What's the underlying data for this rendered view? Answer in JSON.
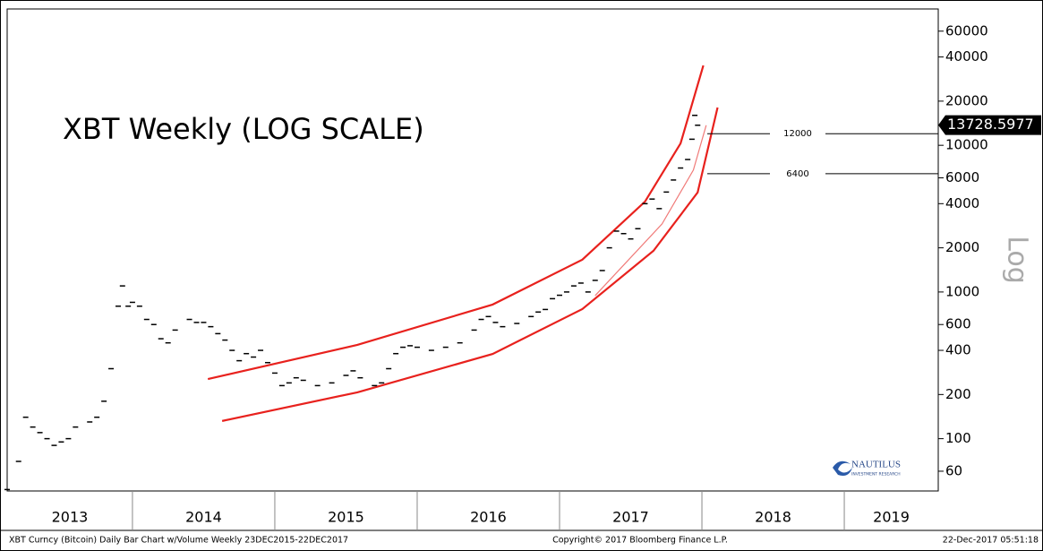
{
  "chart_data": {
    "type": "bar",
    "title": "XBT Weekly (LOG SCALE)",
    "y_axis_label": "Log",
    "log_scale": true,
    "color": "#000000",
    "x": [
      2013.12,
      2013.2,
      2013.25,
      2013.3,
      2013.35,
      2013.4,
      2013.45,
      2013.5,
      2013.55,
      2013.6,
      2013.7,
      2013.75,
      2013.8,
      2013.85,
      2013.9,
      2013.93,
      2013.97,
      2014.0,
      2014.05,
      2014.1,
      2014.15,
      2014.2,
      2014.25,
      2014.3,
      2014.4,
      2014.45,
      2014.5,
      2014.55,
      2014.6,
      2014.65,
      2014.7,
      2014.75,
      2014.8,
      2014.85,
      2014.9,
      2014.95,
      2015.0,
      2015.05,
      2015.1,
      2015.15,
      2015.2,
      2015.3,
      2015.4,
      2015.5,
      2015.55,
      2015.6,
      2015.7,
      2015.75,
      2015.8,
      2015.85,
      2015.9,
      2015.95,
      2016.0,
      2016.1,
      2016.2,
      2016.3,
      2016.4,
      2016.45,
      2016.5,
      2016.55,
      2016.6,
      2016.7,
      2016.8,
      2016.85,
      2016.9,
      2016.95,
      2017.0,
      2017.05,
      2017.1,
      2017.15,
      2017.2,
      2017.25,
      2017.3,
      2017.35,
      2017.4,
      2017.45,
      2017.5,
      2017.55,
      2017.6,
      2017.65,
      2017.7,
      2017.75,
      2017.8,
      2017.85,
      2017.9,
      2017.93,
      2017.95,
      2017.97
    ],
    "values": [
      45,
      70,
      140,
      120,
      110,
      100,
      90,
      95,
      100,
      120,
      130,
      140,
      180,
      300,
      800,
      1100,
      800,
      850,
      800,
      650,
      600,
      480,
      450,
      550,
      650,
      620,
      620,
      580,
      520,
      470,
      400,
      340,
      380,
      360,
      400,
      330,
      280,
      230,
      240,
      260,
      250,
      230,
      240,
      270,
      290,
      260,
      230,
      240,
      300,
      380,
      420,
      430,
      420,
      400,
      420,
      450,
      550,
      650,
      680,
      620,
      580,
      610,
      680,
      730,
      760,
      900,
      950,
      1000,
      1100,
      1150,
      1000,
      1200,
      1400,
      2000,
      2600,
      2500,
      2300,
      2700,
      4000,
      4300,
      3700,
      4800,
      5800,
      7000,
      8000,
      11000,
      16000,
      13700
    ],
    "xlim": [
      2013.12,
      2019.66
    ],
    "xticks": [
      2013,
      2014,
      2015,
      2016,
      2017,
      2018,
      2019
    ],
    "ylim": [
      44,
      85000
    ],
    "yticks": [
      60,
      100,
      200,
      400,
      600,
      1000,
      2000,
      4000,
      6000,
      10000,
      20000,
      40000,
      60000
    ],
    "last_price": 13728.5977,
    "hlines": [
      12000,
      6400
    ],
    "channel": [
      {
        "color": "#e8211d",
        "x": [
          2014.53,
          2015.58,
          2016.53,
          2017.16,
          2017.6,
          2017.85,
          2018.01
        ],
        "y": [
          255,
          436,
          821,
          1660,
          4130,
          10300,
          35000
        ]
      },
      {
        "color": "#e8211d",
        "x": [
          2014.63,
          2015.58,
          2016.53,
          2017.16,
          2017.66,
          2017.97,
          2018.11
        ],
        "y": [
          132,
          207,
          378,
          765,
          1910,
          4770,
          18100
        ]
      },
      {
        "color": "#f07a78",
        "x": [
          2017.25,
          2017.72,
          2017.94,
          2018.03
        ],
        "y": [
          945,
          2910,
          6780,
          13700
        ]
      }
    ],
    "footer_left": "XBT Curncy (Bitcoin) Daily Bar Chart w/Volume  Weekly 23DEC2015-22DEC2017",
    "footer_center": "Copyright© 2017 Bloomberg Finance L.P.",
    "footer_right": "22-Dec-2017 05:51:18",
    "logo": "NAUTILUS",
    "logo_sub": "INVESTMENT RESEARCH"
  }
}
